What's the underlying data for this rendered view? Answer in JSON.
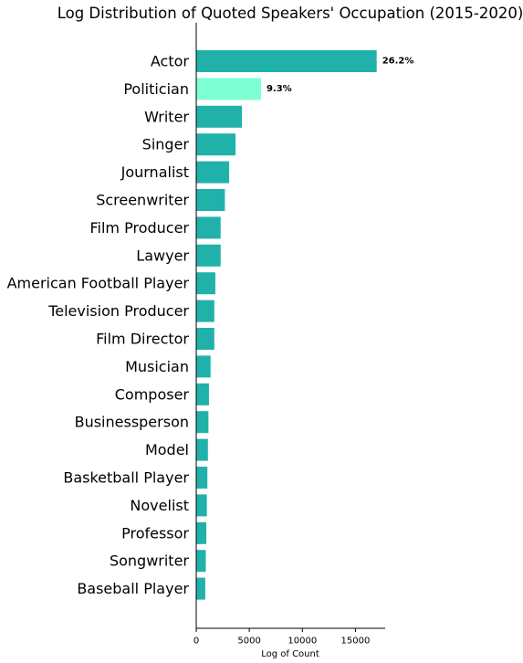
{
  "chart_data": {
    "type": "bar",
    "orientation": "horizontal",
    "title": "Log Distribution of Quoted Speakers' Occupation (2015-2020)",
    "xlabel": "Log of Count",
    "ylabel": "",
    "xlim": [
      0,
      17800
    ],
    "xticks": [
      0,
      5000,
      10000,
      15000
    ],
    "grid": false,
    "categories": [
      "Actor",
      "Politician",
      "Writer",
      "Singer",
      "Journalist",
      "Screenwriter",
      "Film Producer",
      "Lawyer",
      "American Football Player",
      "Television Producer",
      "Film Director",
      "Musician",
      "Composer",
      "Businessperson",
      "Model",
      "Basketball Player",
      "Novelist",
      "Professor",
      "Songwriter",
      "Baseball Player"
    ],
    "values": [
      17000,
      6100,
      4300,
      3700,
      3100,
      2700,
      2300,
      2300,
      1800,
      1700,
      1700,
      1350,
      1200,
      1150,
      1100,
      1050,
      1000,
      950,
      900,
      850
    ],
    "highlight_index": 1,
    "data_labels": [
      {
        "category": "Actor",
        "text": "26.2%"
      },
      {
        "category": "Politician",
        "text": "9.3%"
      }
    ],
    "colors": {
      "bar": "#20b2aa",
      "highlight": "#7fffd4",
      "axis": "#000000",
      "text": "#000000"
    }
  }
}
